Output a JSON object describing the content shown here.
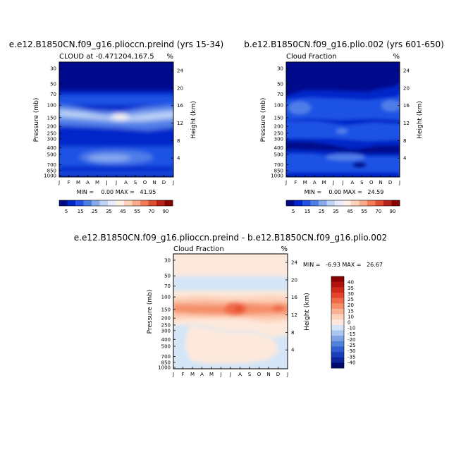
{
  "chart_data": [
    {
      "type": "heatmap",
      "title": "e.e12.B1850CN.f09_g16.plioccn.preind (yrs 15-34)",
      "subtitle": "CLOUD at -0.471204,167.5",
      "units": "%",
      "ylabel": "Pressure (mb)",
      "ylabel_right": "Height (km)",
      "x": [
        "J",
        "F",
        "M",
        "A",
        "M",
        "J",
        "J",
        "A",
        "S",
        "O",
        "N",
        "D",
        "J"
      ],
      "pressure_ticks": [
        "30",
        "50",
        "70",
        "100",
        "150",
        "200",
        "250",
        "300",
        "400",
        "500",
        "700",
        "850",
        "1000"
      ],
      "height_ticks": [
        "24",
        "20",
        "16",
        "12",
        "8",
        "4"
      ],
      "stats_text": "MIN =    0.00 MAX =   41.95",
      "min": 0.0,
      "max": 41.95,
      "scale": "log-pressure",
      "colorbar": {
        "labels": [
          "5",
          "15",
          "25",
          "35",
          "45",
          "55",
          "70",
          "90"
        ],
        "colors": [
          "#000a8c",
          "#0026c9",
          "#1f52e5",
          "#4f7de8",
          "#86a9ef",
          "#bdd3f5",
          "#e6eefb",
          "#fff0e4",
          "#fed2b9",
          "#fbab87",
          "#f47c57",
          "#e04c30",
          "#b8201a",
          "#8b0000"
        ]
      }
    },
    {
      "type": "heatmap",
      "title": "b.e12.B1850CN.f09_g16.plio.002 (yrs 601-650)",
      "subtitle": "Cloud Fraction",
      "units": "%",
      "ylabel": "Pressure (mb)",
      "ylabel_right": "Height (km)",
      "x": [
        "J",
        "F",
        "M",
        "A",
        "M",
        "J",
        "J",
        "A",
        "S",
        "O",
        "N",
        "D",
        "J"
      ],
      "pressure_ticks": [
        "30",
        "50",
        "70",
        "100",
        "150",
        "200",
        "250",
        "300",
        "400",
        "500",
        "700",
        "850",
        "1000"
      ],
      "height_ticks": [
        "24",
        "20",
        "16",
        "12",
        "8",
        "4"
      ],
      "stats_text": "MIN =    0.00 MAX =   24.59",
      "min": 0.0,
      "max": 24.59,
      "scale": "log-pressure",
      "colorbar": {
        "labels": [
          "5",
          "15",
          "25",
          "35",
          "45",
          "55",
          "70",
          "90"
        ],
        "colors": [
          "#000a8c",
          "#0026c9",
          "#1f52e5",
          "#4f7de8",
          "#86a9ef",
          "#bdd3f5",
          "#e6eefb",
          "#fff0e4",
          "#fed2b9",
          "#fbab87",
          "#f47c57",
          "#e04c30",
          "#b8201a",
          "#8b0000"
        ]
      }
    },
    {
      "type": "heatmap",
      "title": "e.e12.B1850CN.f09_g16.plioccn.preind - b.e12.B1850CN.f09_g16.plio.002",
      "subtitle": "Cloud Fraction",
      "units": "%",
      "ylabel": "Pressure (mb)",
      "ylabel_right": "Height (km)",
      "x": [
        "J",
        "F",
        "M",
        "A",
        "M",
        "J",
        "J",
        "A",
        "S",
        "O",
        "N",
        "D",
        "J"
      ],
      "pressure_ticks": [
        "30",
        "50",
        "70",
        "100",
        "150",
        "200",
        "250",
        "300",
        "400",
        "500",
        "700",
        "850",
        "1000"
      ],
      "height_ticks": [
        "24",
        "20",
        "16",
        "12",
        "8",
        "4"
      ],
      "stats_text": "MIN =   -6.93 MAX =   26.67",
      "min": -6.93,
      "max": 26.67,
      "scale": "log-pressure",
      "colorbar": {
        "labels": [
          "40",
          "35",
          "30",
          "25",
          "20",
          "15",
          "10",
          "0",
          "-10",
          "-15",
          "-20",
          "-25",
          "-30",
          "-35",
          "-40"
        ],
        "colors": [
          "#8b0000",
          "#b0120e",
          "#cf2a1c",
          "#e3452c",
          "#ef6a47",
          "#f58e69",
          "#f9b293",
          "#fdd3bc",
          "#fde9dc",
          "#d3e5f7",
          "#a9c7ee",
          "#7da3e4",
          "#5382dc",
          "#2f5fd0",
          "#1a3fbd",
          "#0d2699",
          "#000a6e"
        ]
      }
    }
  ]
}
